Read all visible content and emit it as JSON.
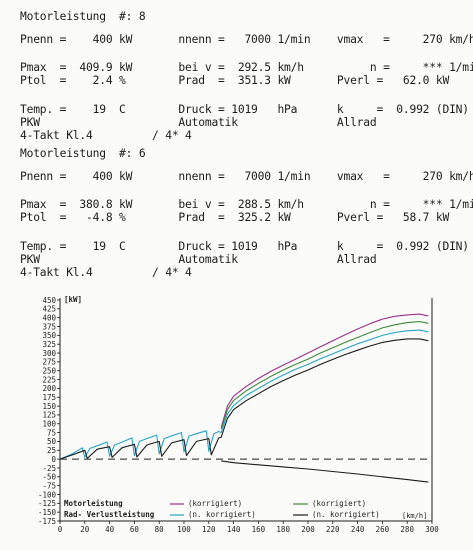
{
  "blocks": [
    {
      "title": "Motorleistung  #: 8",
      "lines": [
        "Pnenn =    400 kW       nnenn =   7000 1/min    vmax   =     270 km/h",
        "Pmax  =  409.9 kW       bei v =  292.5 km/h          n =     *** 1/min",
        "Ptol  =    2.4 %        Prad  =  351.3 kW       Pverl =   62.0 kW",
        "Temp. =    19  C        Druck = 1019   hPa      k     =  0.992 (DIN)",
        "PKW                     Automatik               Allrad",
        "4-Takt Kl.4         / 4* 4"
      ]
    },
    {
      "title": "Motorleistung  #: 6",
      "lines": [
        "Pnenn =    400 kW       nnenn =   7000 1/min    vmax   =     270 km/h",
        "Pmax  =  380.8 kW       bei v =  288.5 km/h          n =     *** 1/min",
        "Ptol  =   -4.8 %        Prad  =  325.2 kW       Pverl =   58.7 kW",
        "Temp. =    19  C        Druck = 1019   hPa      k     =  0.992 (DIN)",
        "PKW                     Automatik               Allrad",
        "4-Takt Kl.4         / 4* 4"
      ]
    }
  ],
  "chart_data": {
    "type": "line",
    "ylabel": "[kW]",
    "xlabel": "[km/h]",
    "xlim": [
      0,
      300
    ],
    "ylim": [
      -175,
      450
    ],
    "x_ticks": [
      "0",
      "20",
      "40",
      "60",
      "80",
      "100",
      "120",
      "140",
      "160",
      "180",
      "200",
      "220",
      "240",
      "260",
      "280",
      "300"
    ],
    "y_ticks": [
      "450",
      "425",
      "400",
      "375",
      "350",
      "325",
      "300",
      "275",
      "250",
      "225",
      "200",
      "175",
      "150",
      "125",
      "100",
      "75",
      "50",
      "25",
      "0",
      "-25",
      "-50",
      "-75",
      "-100",
      "-125",
      "-150",
      "-175"
    ],
    "legend": {
      "motorleistung": "Motorleistung",
      "rad_verlust": "Rad- Verlustleistung",
      "korrigiert_1": "(korrigiert)",
      "korrigiert_2": "(korrigiert)",
      "n_korrigiert_1": "(n. korrigiert)",
      "n_korrigiert_2": "(n. korrigiert)"
    },
    "colors": {
      "purple": "#9b2f8e",
      "green": "#3f8a3a",
      "cyan": "#26a3c9",
      "black": "#1c1c1c"
    },
    "series": [
      {
        "color": "purple",
        "x": [
          130,
          135,
          140,
          150,
          160,
          170,
          180,
          190,
          200,
          210,
          220,
          230,
          240,
          250,
          260,
          270,
          280,
          290,
          297
        ],
        "y": [
          90,
          150,
          178,
          205,
          228,
          248,
          266,
          283,
          300,
          318,
          335,
          352,
          368,
          383,
          396,
          404,
          408,
          410,
          405
        ]
      },
      {
        "color": "green",
        "x": [
          130,
          135,
          140,
          150,
          160,
          170,
          180,
          190,
          200,
          210,
          220,
          230,
          240,
          250,
          260,
          270,
          280,
          290,
          297
        ],
        "y": [
          85,
          140,
          166,
          193,
          214,
          234,
          252,
          268,
          283,
          300,
          315,
          330,
          344,
          358,
          371,
          380,
          386,
          389,
          384
        ]
      },
      {
        "color": "cyan",
        "x": [
          0,
          10,
          18,
          20,
          24,
          30,
          38,
          40,
          44,
          50,
          58,
          60,
          64,
          70,
          78,
          80,
          84,
          90,
          98,
          100,
          104,
          110,
          118,
          120,
          124,
          128,
          130,
          135,
          140,
          150,
          160,
          170,
          180,
          190,
          200,
          210,
          220,
          230,
          240,
          250,
          260,
          270,
          280,
          290,
          297
        ],
        "y": [
          0,
          15,
          32,
          5,
          30,
          38,
          48,
          8,
          40,
          48,
          60,
          10,
          50,
          58,
          68,
          15,
          58,
          66,
          75,
          20,
          65,
          72,
          80,
          22,
          72,
          78,
          75,
          128,
          152,
          180,
          200,
          220,
          238,
          254,
          268,
          284,
          298,
          312,
          326,
          338,
          350,
          358,
          363,
          365,
          360
        ]
      },
      {
        "color": "black",
        "x": [
          0,
          10,
          20,
          22,
          30,
          40,
          42,
          50,
          60,
          62,
          70,
          80,
          82,
          90,
          100,
          102,
          110,
          120,
          122,
          128,
          130,
          135,
          140,
          150,
          160,
          170,
          180,
          190,
          200,
          210,
          220,
          230,
          240,
          250,
          260,
          270,
          280,
          290,
          297
        ],
        "y": [
          0,
          12,
          25,
          2,
          28,
          35,
          5,
          32,
          42,
          6,
          40,
          50,
          8,
          46,
          55,
          10,
          50,
          58,
          12,
          60,
          62,
          115,
          140,
          165,
          185,
          205,
          222,
          238,
          252,
          268,
          282,
          296,
          308,
          320,
          330,
          336,
          340,
          340,
          335
        ]
      },
      {
        "color": "black",
        "x": [
          130,
          140,
          160,
          180,
          200,
          220,
          240,
          260,
          280,
          297
        ],
        "y": [
          -5,
          -10,
          -16,
          -22,
          -28,
          -35,
          -42,
          -50,
          -58,
          -65
        ]
      }
    ],
    "zero_dashed": {
      "x": [
        0,
        297
      ],
      "y": [
        0,
        0
      ]
    }
  }
}
